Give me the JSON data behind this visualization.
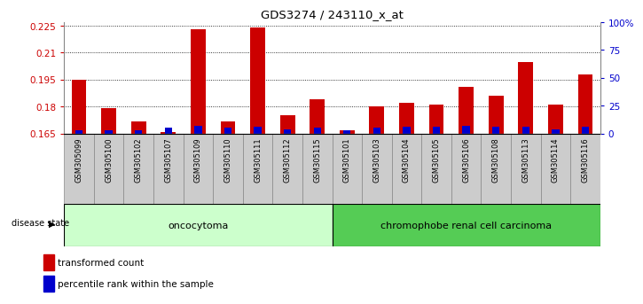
{
  "title": "GDS3274 / 243110_x_at",
  "samples": [
    "GSM305099",
    "GSM305100",
    "GSM305102",
    "GSM305107",
    "GSM305109",
    "GSM305110",
    "GSM305111",
    "GSM305112",
    "GSM305115",
    "GSM305101",
    "GSM305103",
    "GSM305104",
    "GSM305105",
    "GSM305106",
    "GSM305108",
    "GSM305113",
    "GSM305114",
    "GSM305116"
  ],
  "transformed_count": [
    0.195,
    0.179,
    0.172,
    0.166,
    0.223,
    0.172,
    0.224,
    0.175,
    0.184,
    0.167,
    0.18,
    0.182,
    0.181,
    0.191,
    0.186,
    0.205,
    0.181,
    0.198
  ],
  "percentile_rank": [
    3,
    3,
    3,
    5,
    7,
    5,
    6,
    4,
    5,
    3,
    5,
    6,
    6,
    7,
    6,
    6,
    4,
    6
  ],
  "bar_base": 0.165,
  "ylim_left": [
    0.165,
    0.227
  ],
  "ylim_right": [
    0,
    100
  ],
  "yticks_left": [
    0.165,
    0.18,
    0.195,
    0.21,
    0.225
  ],
  "yticks_right": [
    0,
    25,
    50,
    75,
    100
  ],
  "yticks_right_labels": [
    "0",
    "25",
    "50",
    "75",
    "100%"
  ],
  "red_color": "#cc0000",
  "blue_color": "#0000cc",
  "oncocytoma_count": 9,
  "chromophobe_count": 9,
  "group1_label": "oncocytoma",
  "group2_label": "chromophobe renal cell carcinoma",
  "group1_color": "#ccffcc",
  "group2_color": "#55cc55",
  "disease_state_label": "disease state",
  "legend_red": "transformed count",
  "legend_blue": "percentile rank within the sample",
  "bar_width": 0.5,
  "blue_bar_width": 0.25,
  "background_color": "#ffffff",
  "plot_bg_color": "#ffffff",
  "axis_label_color_left": "#cc0000",
  "axis_label_color_right": "#0000cc",
  "xtick_bg_color": "#cccccc",
  "xtick_border_color": "#888888"
}
